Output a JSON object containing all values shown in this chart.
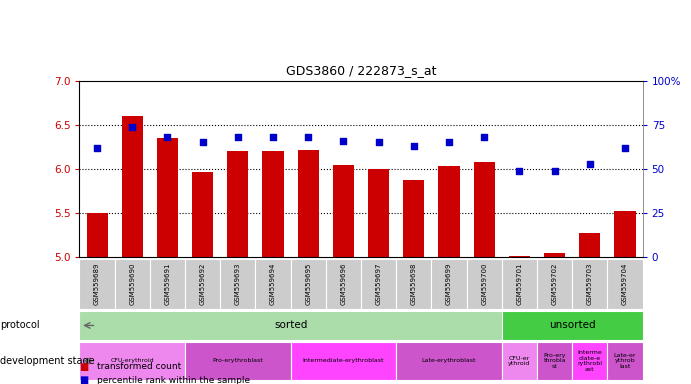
{
  "title": "GDS3860 / 222873_s_at",
  "samples": [
    "GSM559689",
    "GSM559690",
    "GSM559691",
    "GSM559692",
    "GSM559693",
    "GSM559694",
    "GSM559695",
    "GSM559696",
    "GSM559697",
    "GSM559698",
    "GSM559699",
    "GSM559700",
    "GSM559701",
    "GSM559702",
    "GSM559703",
    "GSM559704"
  ],
  "bar_values": [
    5.5,
    6.6,
    6.35,
    5.97,
    6.2,
    6.2,
    6.22,
    6.05,
    6.0,
    5.87,
    6.03,
    6.08,
    5.02,
    5.05,
    5.28,
    5.52
  ],
  "dot_values": [
    62,
    74,
    68,
    65,
    68,
    68,
    68,
    66,
    65,
    63,
    65,
    68,
    49,
    49,
    53,
    62
  ],
  "ylim_left": [
    5.0,
    7.0
  ],
  "ylim_right": [
    0,
    100
  ],
  "yticks_left": [
    5.0,
    5.5,
    6.0,
    6.5,
    7.0
  ],
  "yticks_right": [
    0,
    25,
    50,
    75,
    100
  ],
  "bar_color": "#cc0000",
  "dot_color": "#0000cc",
  "hline_values": [
    5.5,
    6.0,
    6.5
  ],
  "protocol_row": [
    {
      "label": "sorted",
      "start": 0,
      "end": 12,
      "color": "#aaddaa"
    },
    {
      "label": "unsorted",
      "start": 12,
      "end": 16,
      "color": "#44cc44"
    }
  ],
  "dev_stage_row": [
    {
      "label": "CFU-erythroid",
      "start": 0,
      "end": 3,
      "color": "#ee88ee"
    },
    {
      "label": "Pro-erythroblast",
      "start": 3,
      "end": 6,
      "color": "#cc55cc"
    },
    {
      "label": "Intermediate-erythroblast",
      "start": 6,
      "end": 9,
      "color": "#ff44ff"
    },
    {
      "label": "Late-erythroblast",
      "start": 9,
      "end": 12,
      "color": "#cc55cc"
    },
    {
      "label": "CFU-er\nythroid",
      "start": 12,
      "end": 13,
      "color": "#ee88ee"
    },
    {
      "label": "Pro-ery\nthrobla\nst",
      "start": 13,
      "end": 14,
      "color": "#cc55cc"
    },
    {
      "label": "Interme\ndiate-e\nrythrobl\nast",
      "start": 14,
      "end": 15,
      "color": "#ff44ff"
    },
    {
      "label": "Late-er\nythrob\nlast",
      "start": 15,
      "end": 16,
      "color": "#cc55cc"
    }
  ],
  "legend": [
    {
      "label": "transformed count",
      "color": "#cc0000"
    },
    {
      "label": "percentile rank within the sample",
      "color": "#0000cc"
    }
  ]
}
